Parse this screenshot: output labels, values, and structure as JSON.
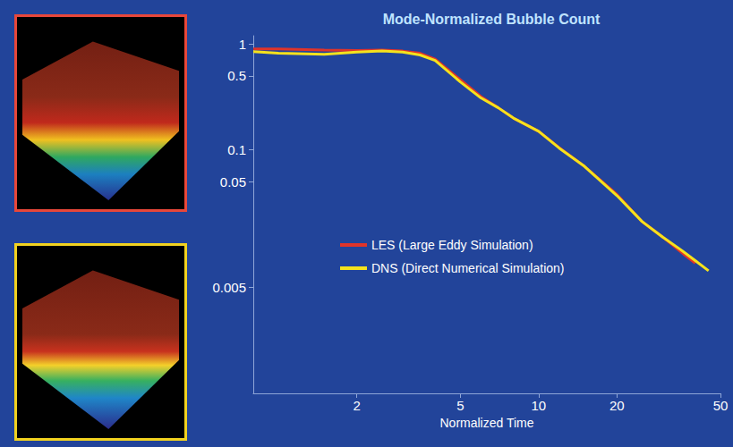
{
  "chart_data": {
    "type": "line",
    "title": "Mode-Normalized Bubble Count",
    "x_label": "Normalized Time",
    "x": [
      0.8,
      1,
      1.5,
      2,
      2.5,
      3,
      3.5,
      4,
      5,
      6,
      7,
      8,
      10,
      12,
      15,
      20,
      25,
      30,
      35,
      40,
      45
    ],
    "series": [
      {
        "name": "LES (Large Eddy Simulation)",
        "color": "#e0342a",
        "values": [
          0.9,
          0.9,
          0.88,
          0.87,
          0.88,
          0.86,
          0.82,
          0.72,
          0.46,
          0.32,
          0.25,
          0.2,
          0.15,
          0.105,
          0.07,
          0.038,
          0.021,
          0.015,
          0.011,
          0.0085,
          null
        ]
      },
      {
        "name": "DNS (Direct Numerical Simulation)",
        "color": "#f5e21c",
        "values": [
          0.85,
          0.82,
          0.8,
          0.84,
          0.86,
          0.84,
          0.79,
          0.7,
          0.44,
          0.31,
          0.25,
          0.2,
          0.15,
          0.104,
          0.07,
          0.037,
          0.021,
          0.015,
          0.0115,
          0.009,
          0.0072
        ]
      }
    ],
    "xlim": [
      0.8,
      50
    ],
    "ylim": [
      0.0005,
      1.2
    ],
    "xticks": [
      2,
      5,
      10,
      20,
      50
    ],
    "yticks": [
      0.005,
      0.05,
      0.1,
      0.5,
      1
    ],
    "log": true,
    "grid": false,
    "legend": "left"
  }
}
